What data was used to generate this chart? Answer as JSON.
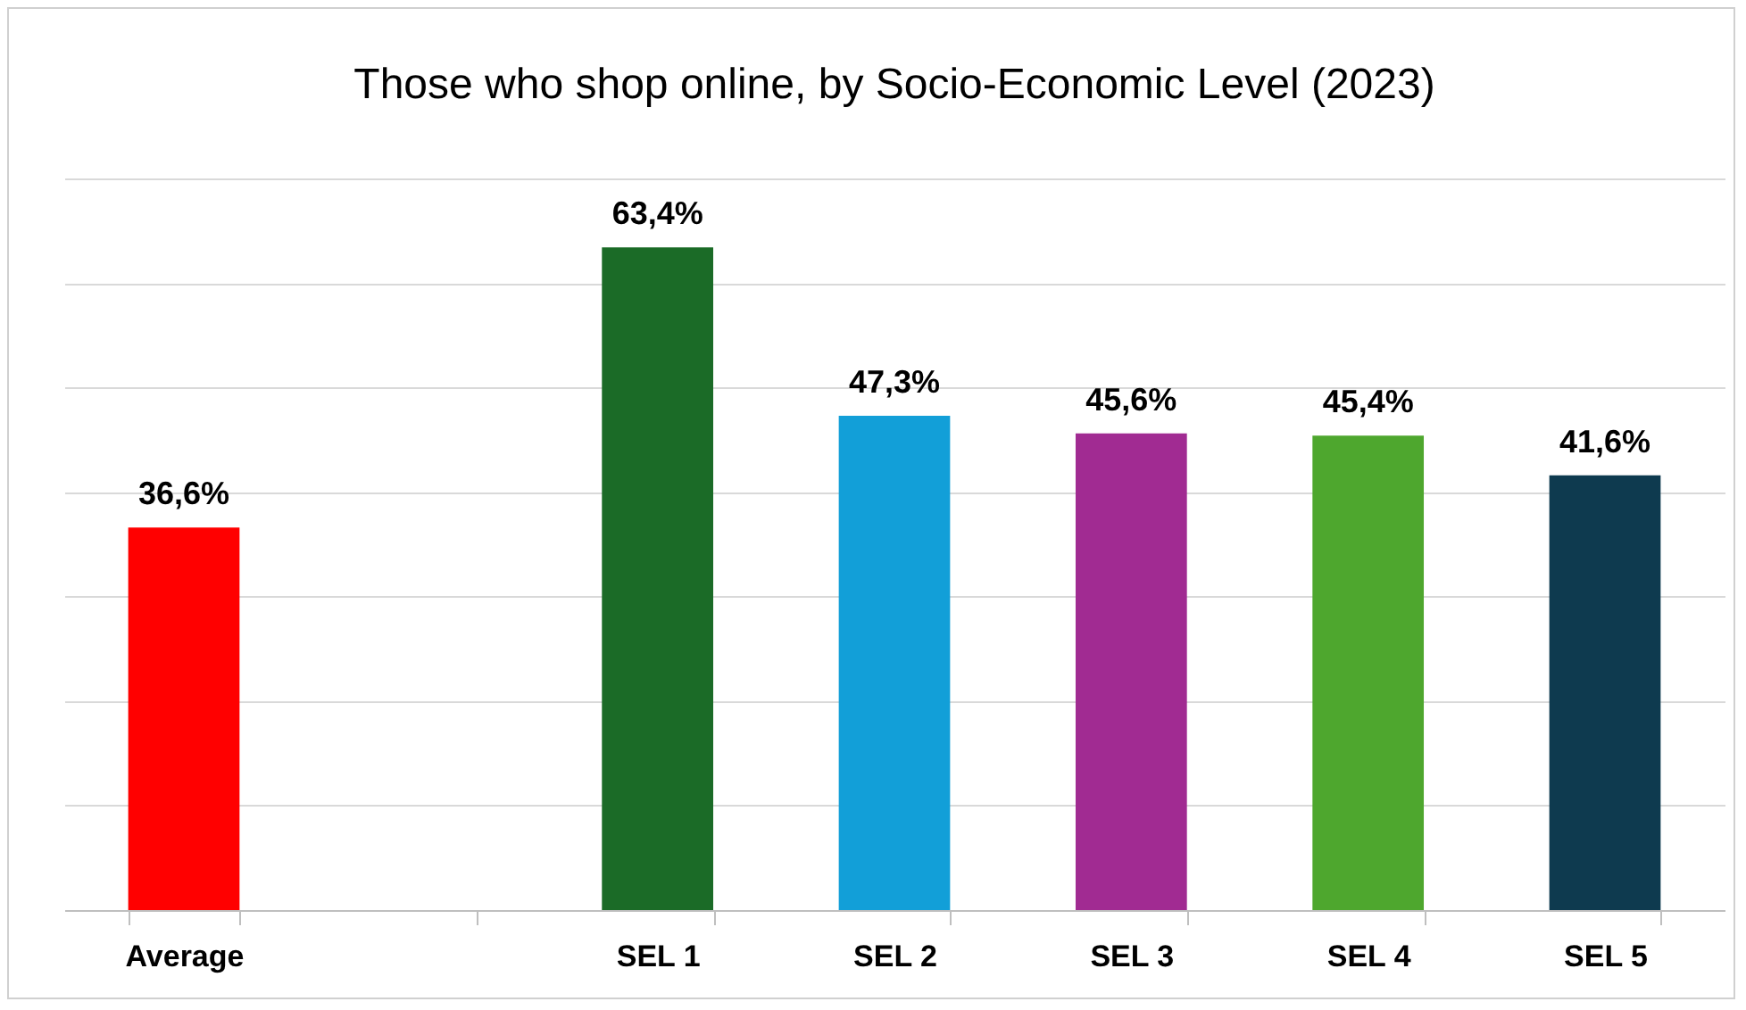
{
  "chart_data": {
    "type": "bar",
    "title": "Those who shop online, by Socio-Economic Level (2023)",
    "categories": [
      "Average",
      null,
      "SEL 1",
      "SEL 2",
      "SEL 3",
      "SEL 4",
      "SEL 5"
    ],
    "values": [
      36.6,
      null,
      63.4,
      47.3,
      45.6,
      45.4,
      41.6
    ],
    "colors": [
      "#ff0000",
      "#ffffff",
      "#1b6b27",
      "#129fd8",
      "#a12b92",
      "#4ea72e",
      "#0e3a4f"
    ],
    "value_labels": [
      "36,6%",
      null,
      "63,4%",
      "47,3%",
      "45,6%",
      "45,4%",
      "41,6%"
    ],
    "ylim": [
      0,
      70
    ],
    "yticks": [
      {
        "value": 0,
        "label": null
      },
      {
        "value": 10,
        "label": null
      },
      {
        "value": 20,
        "label": null
      },
      {
        "value": 30,
        "label": null
      },
      {
        "value": 40,
        "label": null
      },
      {
        "value": 50,
        "label": null
      },
      {
        "value": 60,
        "label": null
      },
      {
        "value": 70,
        "label": null
      }
    ],
    "grid": "y",
    "tick_labels": "x"
  }
}
